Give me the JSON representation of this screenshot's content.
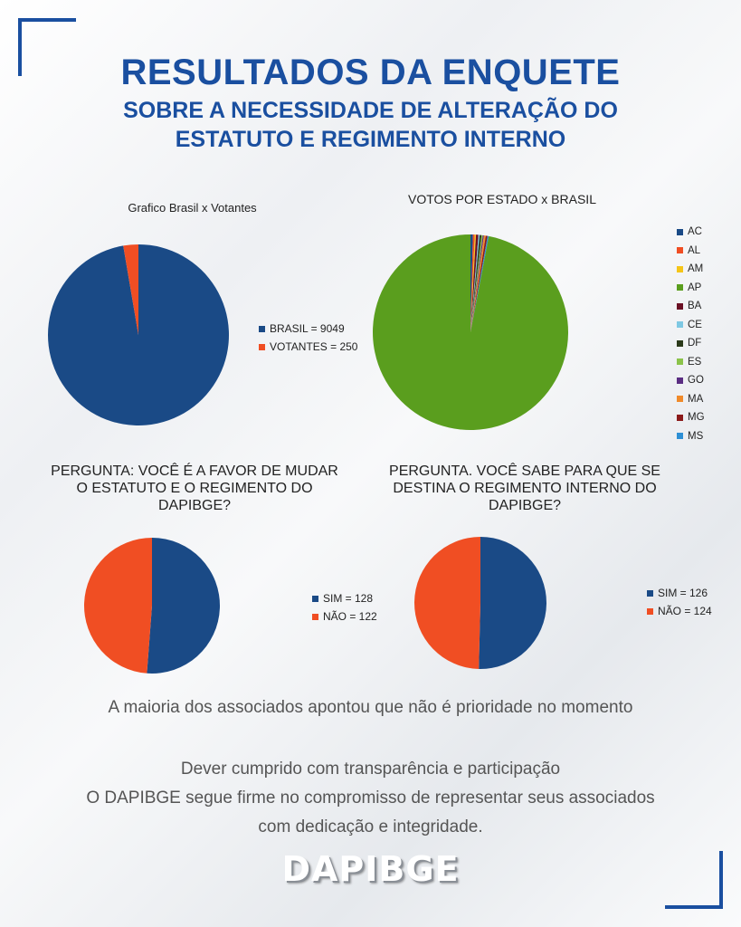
{
  "header": {
    "title": "RESULTADOS DA ENQUETE",
    "subtitle_line1": "SOBRE A NECESSIDADE DE ALTERAÇÃO DO",
    "subtitle_line2": "ESTATUTO E REGIMENTO INTERNO"
  },
  "chart_data": [
    {
      "type": "pie",
      "title": "Grafico Brasil x Votantes",
      "categories": [
        "BRASIL",
        "VOTANTES"
      ],
      "values": [
        9049,
        250
      ],
      "legend": [
        "BRASIL = 9049",
        "VOTANTES = 250"
      ],
      "colors": [
        "#1a4a86",
        "#f04e23"
      ],
      "legend_position": "right"
    },
    {
      "type": "pie",
      "title": "VOTOS POR ESTADO x BRASIL",
      "categories": [
        "AC",
        "AL",
        "AM",
        "AP",
        "BA",
        "CE",
        "DF",
        "ES",
        "GO",
        "MA",
        "MG",
        "MS"
      ],
      "note": "Dominant green slice (approx. 98%) with thin slivers for the remaining states",
      "legend": [
        "AC",
        "AL",
        "AM",
        "AP",
        "BA",
        "CE",
        "DF",
        "ES",
        "GO",
        "MA",
        "MG",
        "MS"
      ],
      "colors": [
        "#1a4a86",
        "#f04e23",
        "#f5c518",
        "#5a9e1e",
        "#6b1024",
        "#7ec8e3",
        "#2b3a1a",
        "#8bc34a",
        "#5a2d82",
        "#f08a2a",
        "#8b1a1a",
        "#2d8fd5"
      ],
      "legend_position": "right"
    },
    {
      "type": "pie",
      "title": "PERGUNTA: VOCÊ É A FAVOR DE MUDAR O ESTATUTO E O REGIMENTO DO DAPIBGE?",
      "title_lines": [
        "PERGUNTA: VOCÊ É A FAVOR DE MUDAR",
        "O ESTATUTO E O REGIMENTO DO",
        "DAPIBGE?"
      ],
      "categories": [
        "SIM",
        "NÃO"
      ],
      "values": [
        128,
        122
      ],
      "legend": [
        "SIM = 128",
        "NÃO = 122"
      ],
      "colors": [
        "#1a4a86",
        "#f04e23"
      ],
      "legend_position": "right"
    },
    {
      "type": "pie",
      "title": "PERGUNTA. VOCÊ SABE PARA QUE SE DESTINA O REGIMENTO INTERNO DO DAPIBGE?",
      "title_lines": [
        "PERGUNTA. VOCÊ SABE PARA QUE SE",
        "DESTINA O REGIMENTO INTERNO DO",
        "DAPIBGE?"
      ],
      "categories": [
        "SIM",
        "NÃO"
      ],
      "values": [
        126,
        124
      ],
      "legend": [
        "SIM = 126",
        "NÃO = 124"
      ],
      "colors": [
        "#1a4a86",
        "#f04e23"
      ],
      "legend_position": "right"
    }
  ],
  "footer": {
    "conclusion": "A maioria dos associados apontou que não é prioridade no momento",
    "line1": "Dever cumprido com transparência e participação",
    "line2": "O DAPIBGE segue firme no compromisso de representar seus associados",
    "line3": "com dedicação e integridade.",
    "logo_text": "DAPIBGE"
  }
}
